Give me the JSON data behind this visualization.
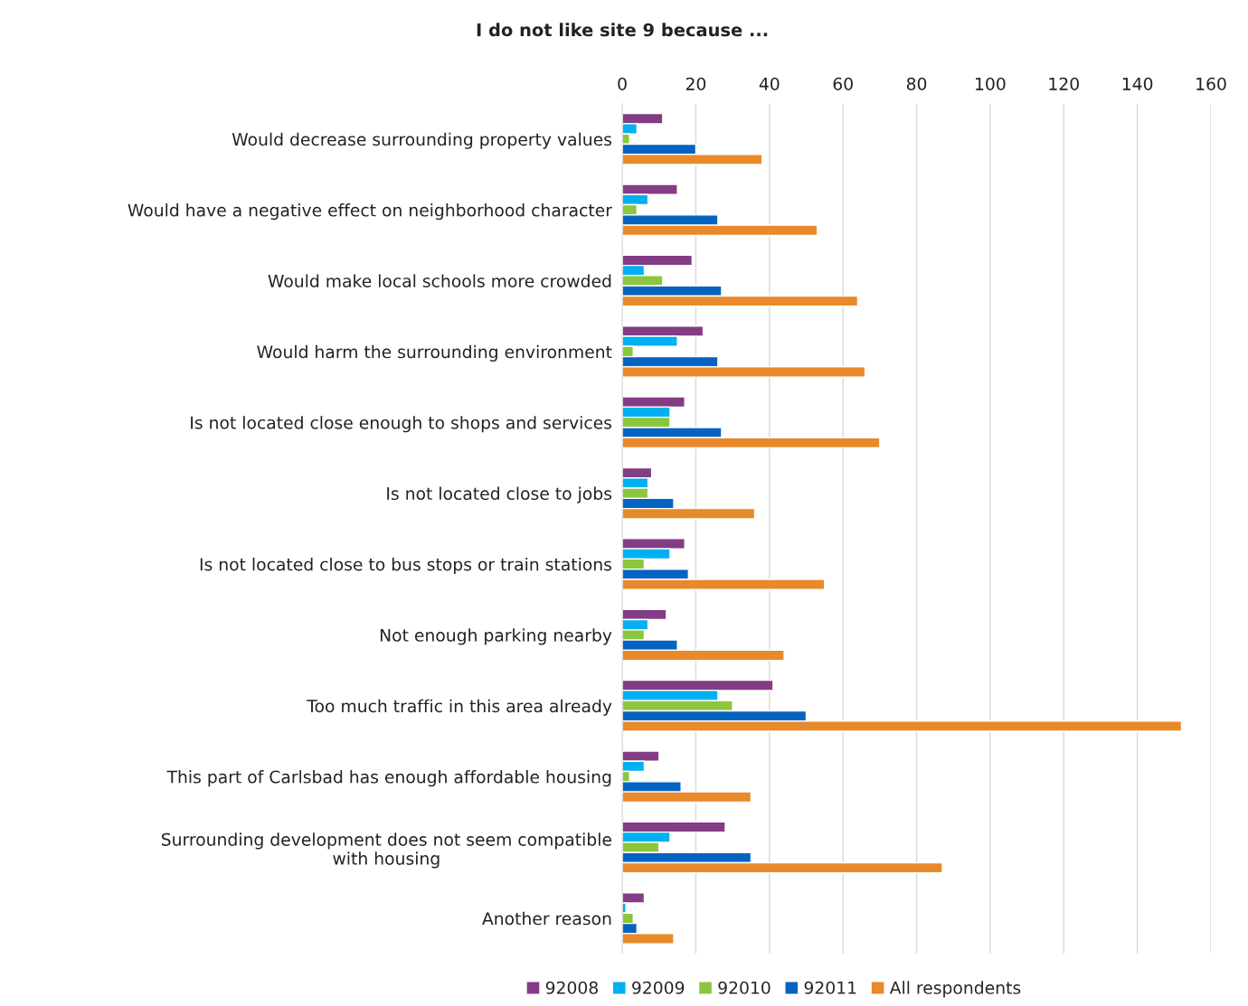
{
  "chart_data": {
    "type": "bar",
    "orientation": "horizontal",
    "title": "I do not like site 9 because ...",
    "categories": [
      "Would decrease surrounding property values",
      "Would have a negative effect on neighborhood character",
      "Would make local schools more crowded",
      "Would harm the surrounding environment",
      "Is not located close enough to shops and services",
      "Is not located close to jobs",
      "Is not located close to bus stops or train stations",
      "Not enough parking nearby",
      "Too much traffic in this area already",
      "This part of Carlsbad has enough affordable housing",
      "Surrounding development does not seem compatible\nwith housing",
      "Another reason"
    ],
    "series": [
      {
        "name": "92008",
        "color": "#833c85",
        "values": [
          11,
          15,
          19,
          22,
          17,
          8,
          17,
          12,
          41,
          10,
          28,
          6
        ]
      },
      {
        "name": "92009",
        "color": "#00b0f0",
        "values": [
          4,
          7,
          6,
          15,
          13,
          7,
          13,
          7,
          26,
          6,
          13,
          1
        ]
      },
      {
        "name": "92010",
        "color": "#8cc63f",
        "values": [
          2,
          4,
          11,
          3,
          13,
          7,
          6,
          6,
          30,
          2,
          10,
          3
        ]
      },
      {
        "name": "92011",
        "color": "#0563c1",
        "values": [
          20,
          26,
          27,
          26,
          27,
          14,
          18,
          15,
          50,
          16,
          35,
          4
        ]
      },
      {
        "name": "All respondents",
        "color": "#e8892a",
        "values": [
          38,
          53,
          64,
          66,
          70,
          36,
          55,
          44,
          152,
          35,
          87,
          14
        ]
      }
    ],
    "xlim": [
      0,
      160
    ],
    "xticks": [
      0,
      20,
      40,
      60,
      80,
      100,
      120,
      140,
      160
    ],
    "grid": "x",
    "legend": "bottom"
  }
}
